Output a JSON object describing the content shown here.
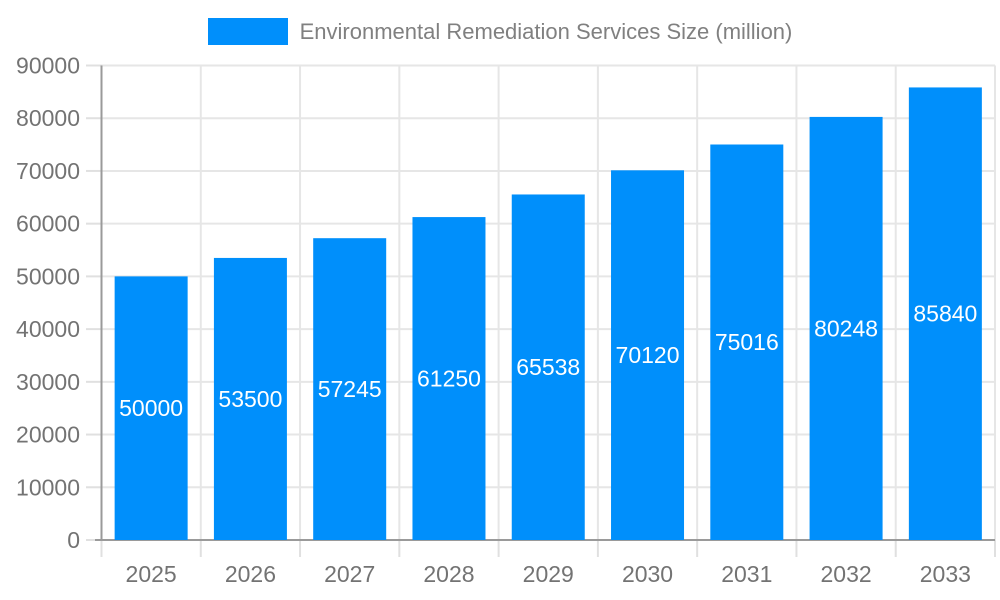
{
  "chart_data": {
    "type": "bar",
    "title": "Environmental Remediation Services Size (million)",
    "categories": [
      "2025",
      "2026",
      "2027",
      "2028",
      "2029",
      "2030",
      "2031",
      "2032",
      "2033"
    ],
    "series": [
      {
        "name": "Environmental Remediation Services Size (million)",
        "values": [
          50000,
          53500,
          57245,
          61250,
          65538,
          70120,
          75016,
          80248,
          85840
        ]
      }
    ],
    "xlabel": "",
    "ylabel": "",
    "ylim": [
      0,
      90000
    ],
    "ytick_step": 10000,
    "ytick_labels": [
      "0",
      "10000",
      "20000",
      "30000",
      "40000",
      "50000",
      "60000",
      "70000",
      "80000",
      "90000"
    ],
    "grid": true,
    "legend_position": "top",
    "data_labels_inside_bars": true
  },
  "colors": {
    "bar": "#008FFB",
    "bar_value_label": "#ffffff",
    "axis_text": "#737373",
    "legend_text": "#808080",
    "gridline": "#e6e6e6",
    "tick": "#e0e0e0",
    "axis_line": "#9a9a9a",
    "background": "#ffffff"
  }
}
